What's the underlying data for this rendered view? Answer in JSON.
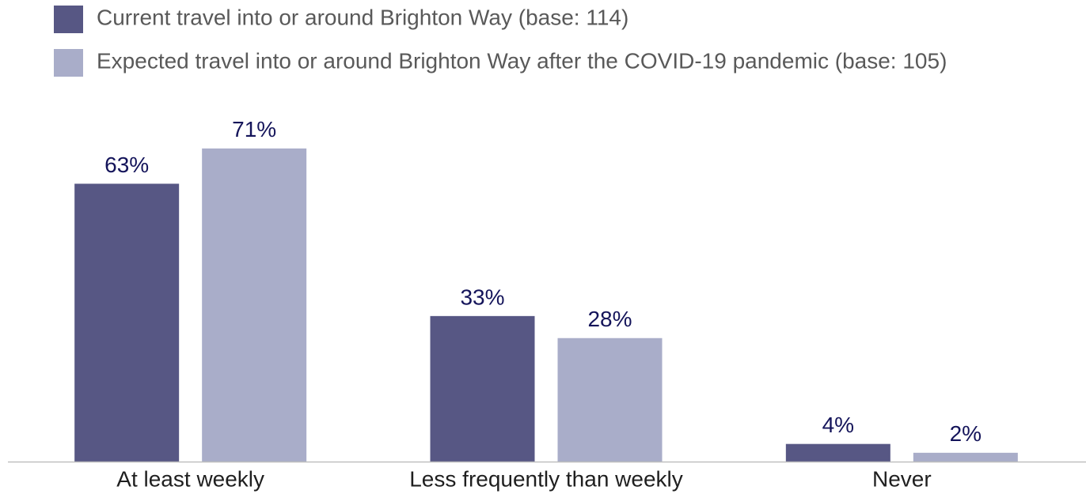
{
  "chart_data": {
    "type": "bar",
    "categories": [
      "At least weekly",
      "Less frequently than weekly",
      "Never"
    ],
    "series": [
      {
        "name": "Current travel into or around Brighton Way (base: 114)",
        "color": "#575784",
        "values": [
          63,
          33,
          4
        ],
        "value_labels": [
          "63%",
          "33%",
          "4%"
        ]
      },
      {
        "name": "Expected travel into or around Brighton Way after the COVID-19 pandemic (base: 105)",
        "color": "#a9adc9",
        "values": [
          71,
          28,
          2
        ],
        "value_labels": [
          "71%",
          "28%",
          "2%"
        ]
      }
    ],
    "legend": "top-left"
  }
}
